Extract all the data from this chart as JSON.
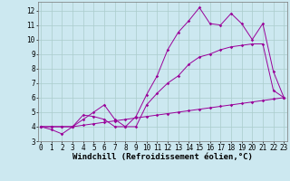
{
  "xlabel": "Windchill (Refroidissement éolien,°C)",
  "bg_color": "#cce8f0",
  "grid_color": "#aacccc",
  "line_color": "#990099",
  "x_ticks": [
    0,
    1,
    2,
    3,
    4,
    5,
    6,
    7,
    8,
    9,
    10,
    11,
    12,
    13,
    14,
    15,
    16,
    17,
    18,
    19,
    20,
    21,
    22,
    23
  ],
  "y_ticks": [
    3,
    4,
    5,
    6,
    7,
    8,
    9,
    10,
    11,
    12
  ],
  "xlim": [
    -0.3,
    23.3
  ],
  "ylim": [
    3.0,
    12.6
  ],
  "series1_x": [
    0,
    1,
    2,
    3,
    4,
    5,
    6,
    7,
    8,
    9,
    10,
    11,
    12,
    13,
    14,
    15,
    16,
    17,
    18,
    19,
    20,
    21,
    22,
    23
  ],
  "series1_y": [
    4.0,
    3.8,
    3.5,
    4.0,
    4.8,
    4.7,
    4.5,
    4.0,
    4.0,
    4.7,
    6.2,
    7.5,
    9.3,
    10.5,
    11.3,
    12.2,
    11.1,
    11.0,
    11.8,
    11.1,
    10.0,
    11.1,
    7.8,
    6.0
  ],
  "series2_x": [
    0,
    1,
    2,
    3,
    4,
    5,
    6,
    7,
    8,
    9,
    10,
    11,
    12,
    13,
    14,
    15,
    16,
    17,
    18,
    19,
    20,
    21,
    22,
    23
  ],
  "series2_y": [
    4.0,
    4.0,
    4.0,
    4.0,
    4.5,
    5.0,
    5.5,
    4.5,
    4.0,
    4.0,
    5.5,
    6.3,
    7.0,
    7.5,
    8.3,
    8.8,
    9.0,
    9.3,
    9.5,
    9.6,
    9.7,
    9.7,
    6.5,
    6.0
  ],
  "series3_x": [
    0,
    1,
    2,
    3,
    4,
    5,
    6,
    7,
    8,
    9,
    10,
    11,
    12,
    13,
    14,
    15,
    16,
    17,
    18,
    19,
    20,
    21,
    22,
    23
  ],
  "series3_y": [
    4.0,
    4.0,
    4.0,
    4.0,
    4.1,
    4.2,
    4.3,
    4.4,
    4.5,
    4.6,
    4.7,
    4.8,
    4.9,
    5.0,
    5.1,
    5.2,
    5.3,
    5.4,
    5.5,
    5.6,
    5.7,
    5.8,
    5.9,
    6.0
  ],
  "tick_fontsize": 5.5,
  "label_fontsize": 6.5
}
